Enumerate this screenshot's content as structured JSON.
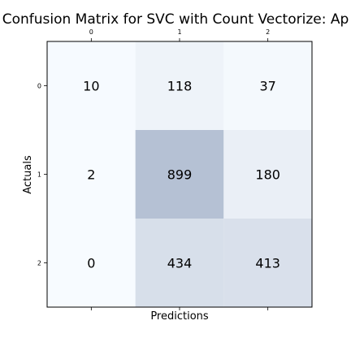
{
  "chart_data": {
    "type": "heatmap",
    "title": "Confusion Matrix for SVC with Count Vectorize: Ap",
    "xlabel": "Predictions",
    "ylabel": "Actuals",
    "x_categories": [
      "0",
      "1",
      "2"
    ],
    "y_categories": [
      "0",
      "1",
      "2"
    ],
    "x_ticks_position": "top",
    "matrix": [
      [
        10,
        118,
        37
      ],
      [
        2,
        899,
        180
      ],
      [
        0,
        434,
        413
      ]
    ],
    "colormap": "Blues-like (low alpha)",
    "colors": {
      "low": "#f7fbff",
      "high": "#b5c1d4"
    },
    "grid": false
  }
}
